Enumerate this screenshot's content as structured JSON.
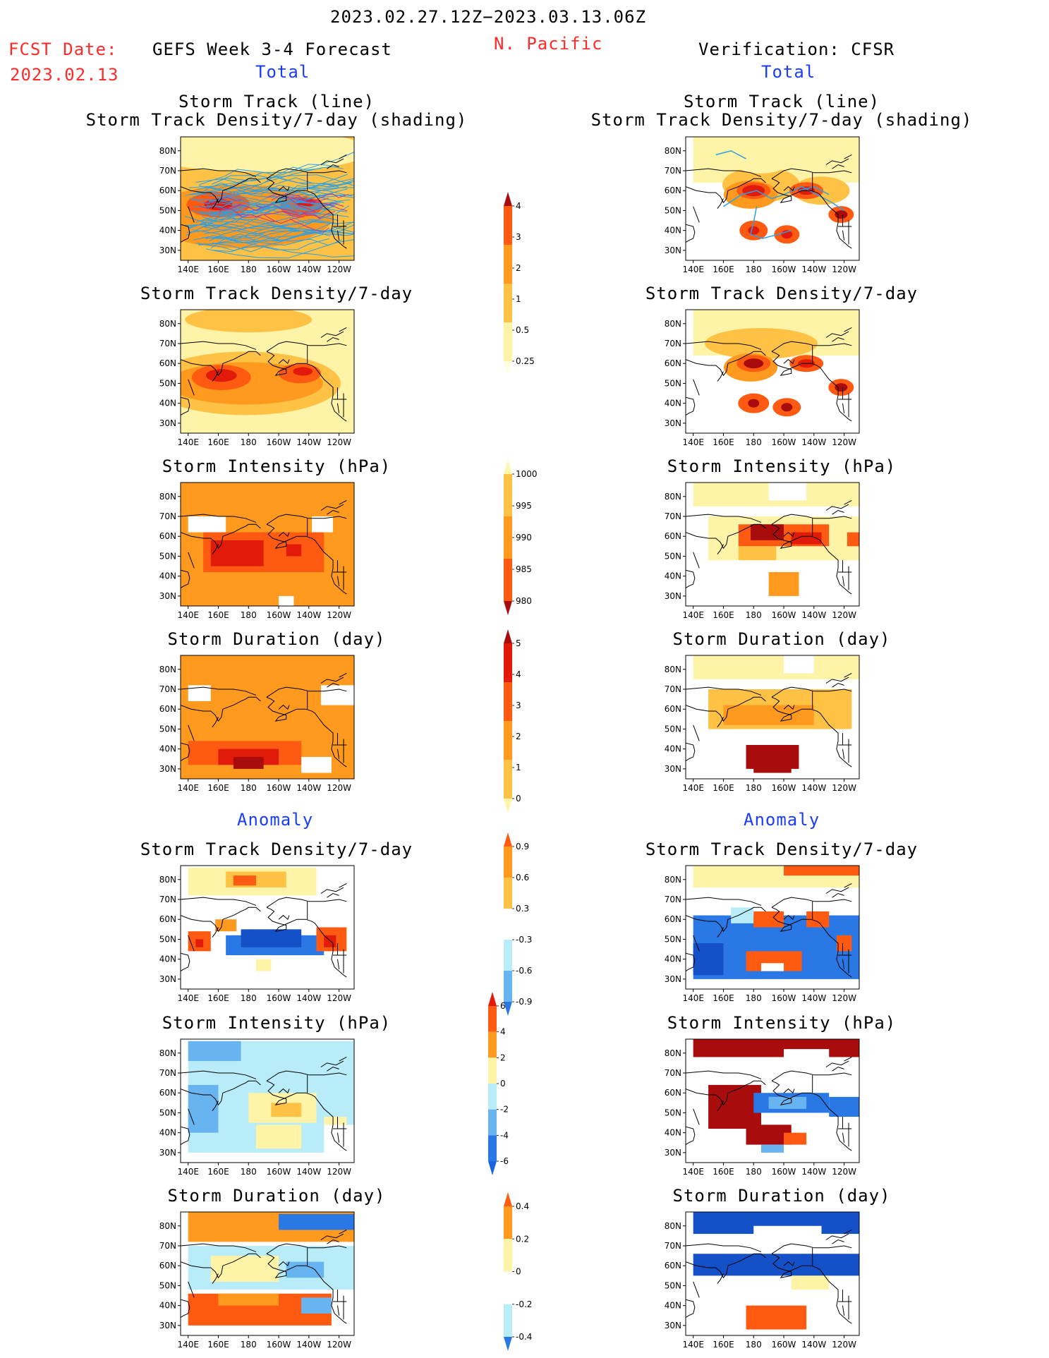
{
  "header": {
    "date_range": "2023.02.27.12Z−2023.03.13.06Z",
    "fcst_label": "FCST Date:",
    "fcst_date": "2023.02.13",
    "left_title": "GEFS Week 3-4 Forecast",
    "region": "N. Pacific",
    "right_title": "Verification: CFSR",
    "left_total": "Total",
    "right_total": "Total",
    "left_anomaly": "Anomaly",
    "right_anomaly": "Anomaly"
  },
  "axes": {
    "lat_labels": [
      "80N",
      "70N",
      "60N",
      "50N",
      "40N",
      "30N"
    ],
    "lon_labels": [
      "140E",
      "160E",
      "180",
      "160W",
      "140W",
      "120W"
    ]
  },
  "panels": {
    "row1_line1": "Storm Track (line)",
    "row1_line2": "Storm Track Density/7-day (shading)",
    "density": "Storm Track Density/7-day",
    "intensity": "Storm Intensity (hPa)",
    "duration": "Storm Duration (day)"
  },
  "colorbars": {
    "density": [
      "4",
      "3",
      "2",
      "1",
      "0.5",
      "0.25"
    ],
    "intensity": [
      "1000",
      "995",
      "990",
      "985",
      "980"
    ],
    "duration": [
      "5",
      "4",
      "3",
      "2",
      "1",
      "0"
    ],
    "anom_density": [
      "0.9",
      "0.6",
      "0.3",
      "-0.3",
      "-0.6",
      "-0.9"
    ],
    "anom_intensity": [
      "6",
      "4",
      "2",
      "0",
      "-2",
      "-4",
      "-6"
    ],
    "anom_duration": [
      "0.4",
      "0.2",
      "0",
      "-0.2",
      "-0.4"
    ]
  },
  "colors": {
    "land_line": "#000000",
    "track_line": "#2aa0e6",
    "pale": "#fff3a8",
    "light_orange": "#ffc244",
    "orange": "#ff9a1e",
    "red_orange": "#ff5a12",
    "red": "#e11a0a",
    "dark_red": "#a80c0c",
    "light_blue": "#b8ecf8",
    "mid_blue": "#68b4f0",
    "blue": "#2a78e6",
    "deep_blue": "#1450c8"
  }
}
